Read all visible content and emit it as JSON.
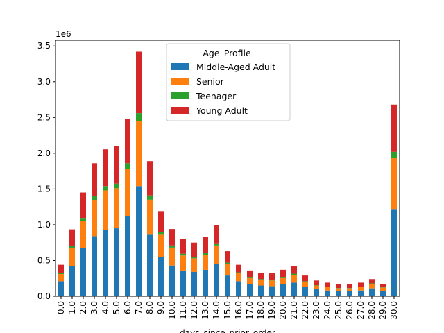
{
  "chart_data": {
    "type": "bar",
    "stacked": true,
    "xlabel": "days_since_prior_order",
    "ylabel": "",
    "y_multiplier_label": "1e6",
    "ylim": [
      0,
      3.58
    ],
    "yticks": [
      0.0,
      0.5,
      1.0,
      1.5,
      2.0,
      2.5,
      3.0,
      3.5
    ],
    "ytick_labels": [
      "0.0",
      "0.5",
      "1.0",
      "1.5",
      "2.0",
      "2.5",
      "3.0",
      "3.5"
    ],
    "grid": false,
    "legend": {
      "title": "Age_Profile",
      "placement": "top-center"
    },
    "categories": [
      "0.0",
      "1.0",
      "2.0",
      "3.0",
      "4.0",
      "5.0",
      "6.0",
      "7.0",
      "8.0",
      "9.0",
      "10.0",
      "11.0",
      "12.0",
      "13.0",
      "14.0",
      "15.0",
      "16.0",
      "17.0",
      "18.0",
      "19.0",
      "20.0",
      "21.0",
      "22.0",
      "23.0",
      "24.0",
      "25.0",
      "26.0",
      "27.0",
      "28.0",
      "29.0",
      "30.0"
    ],
    "series": [
      {
        "name": "Middle-Aged Adult",
        "color": "#1f77b4",
        "values": [
          0.21,
          0.42,
          0.67,
          0.84,
          0.93,
          0.95,
          1.12,
          1.54,
          0.86,
          0.55,
          0.43,
          0.36,
          0.34,
          0.37,
          0.45,
          0.29,
          0.21,
          0.17,
          0.15,
          0.14,
          0.17,
          0.19,
          0.13,
          0.1,
          0.08,
          0.07,
          0.07,
          0.08,
          0.11,
          0.07,
          1.22
        ]
      },
      {
        "name": "Senior",
        "color": "#ff7f0e",
        "values": [
          0.1,
          0.25,
          0.38,
          0.5,
          0.55,
          0.56,
          0.66,
          0.91,
          0.49,
          0.31,
          0.25,
          0.21,
          0.19,
          0.21,
          0.26,
          0.16,
          0.11,
          0.09,
          0.08,
          0.08,
          0.09,
          0.11,
          0.07,
          0.05,
          0.05,
          0.04,
          0.04,
          0.05,
          0.06,
          0.05,
          0.71
        ]
      },
      {
        "name": "Teenager",
        "color": "#2ca02c",
        "values": [
          0.015,
          0.03,
          0.045,
          0.06,
          0.06,
          0.065,
          0.08,
          0.11,
          0.06,
          0.035,
          0.03,
          0.025,
          0.02,
          0.025,
          0.03,
          0.02,
          0.015,
          0.01,
          0.01,
          0.01,
          0.01,
          0.015,
          0.01,
          0.005,
          0.005,
          0.005,
          0.005,
          0.005,
          0.01,
          0.005,
          0.09
        ]
      },
      {
        "name": "Young Adult",
        "color": "#d62728",
        "values": [
          0.115,
          0.235,
          0.355,
          0.46,
          0.515,
          0.525,
          0.62,
          0.86,
          0.48,
          0.295,
          0.23,
          0.205,
          0.2,
          0.225,
          0.255,
          0.16,
          0.105,
          0.09,
          0.09,
          0.09,
          0.1,
          0.105,
          0.08,
          0.065,
          0.055,
          0.05,
          0.05,
          0.055,
          0.06,
          0.045,
          0.66
        ]
      }
    ]
  }
}
